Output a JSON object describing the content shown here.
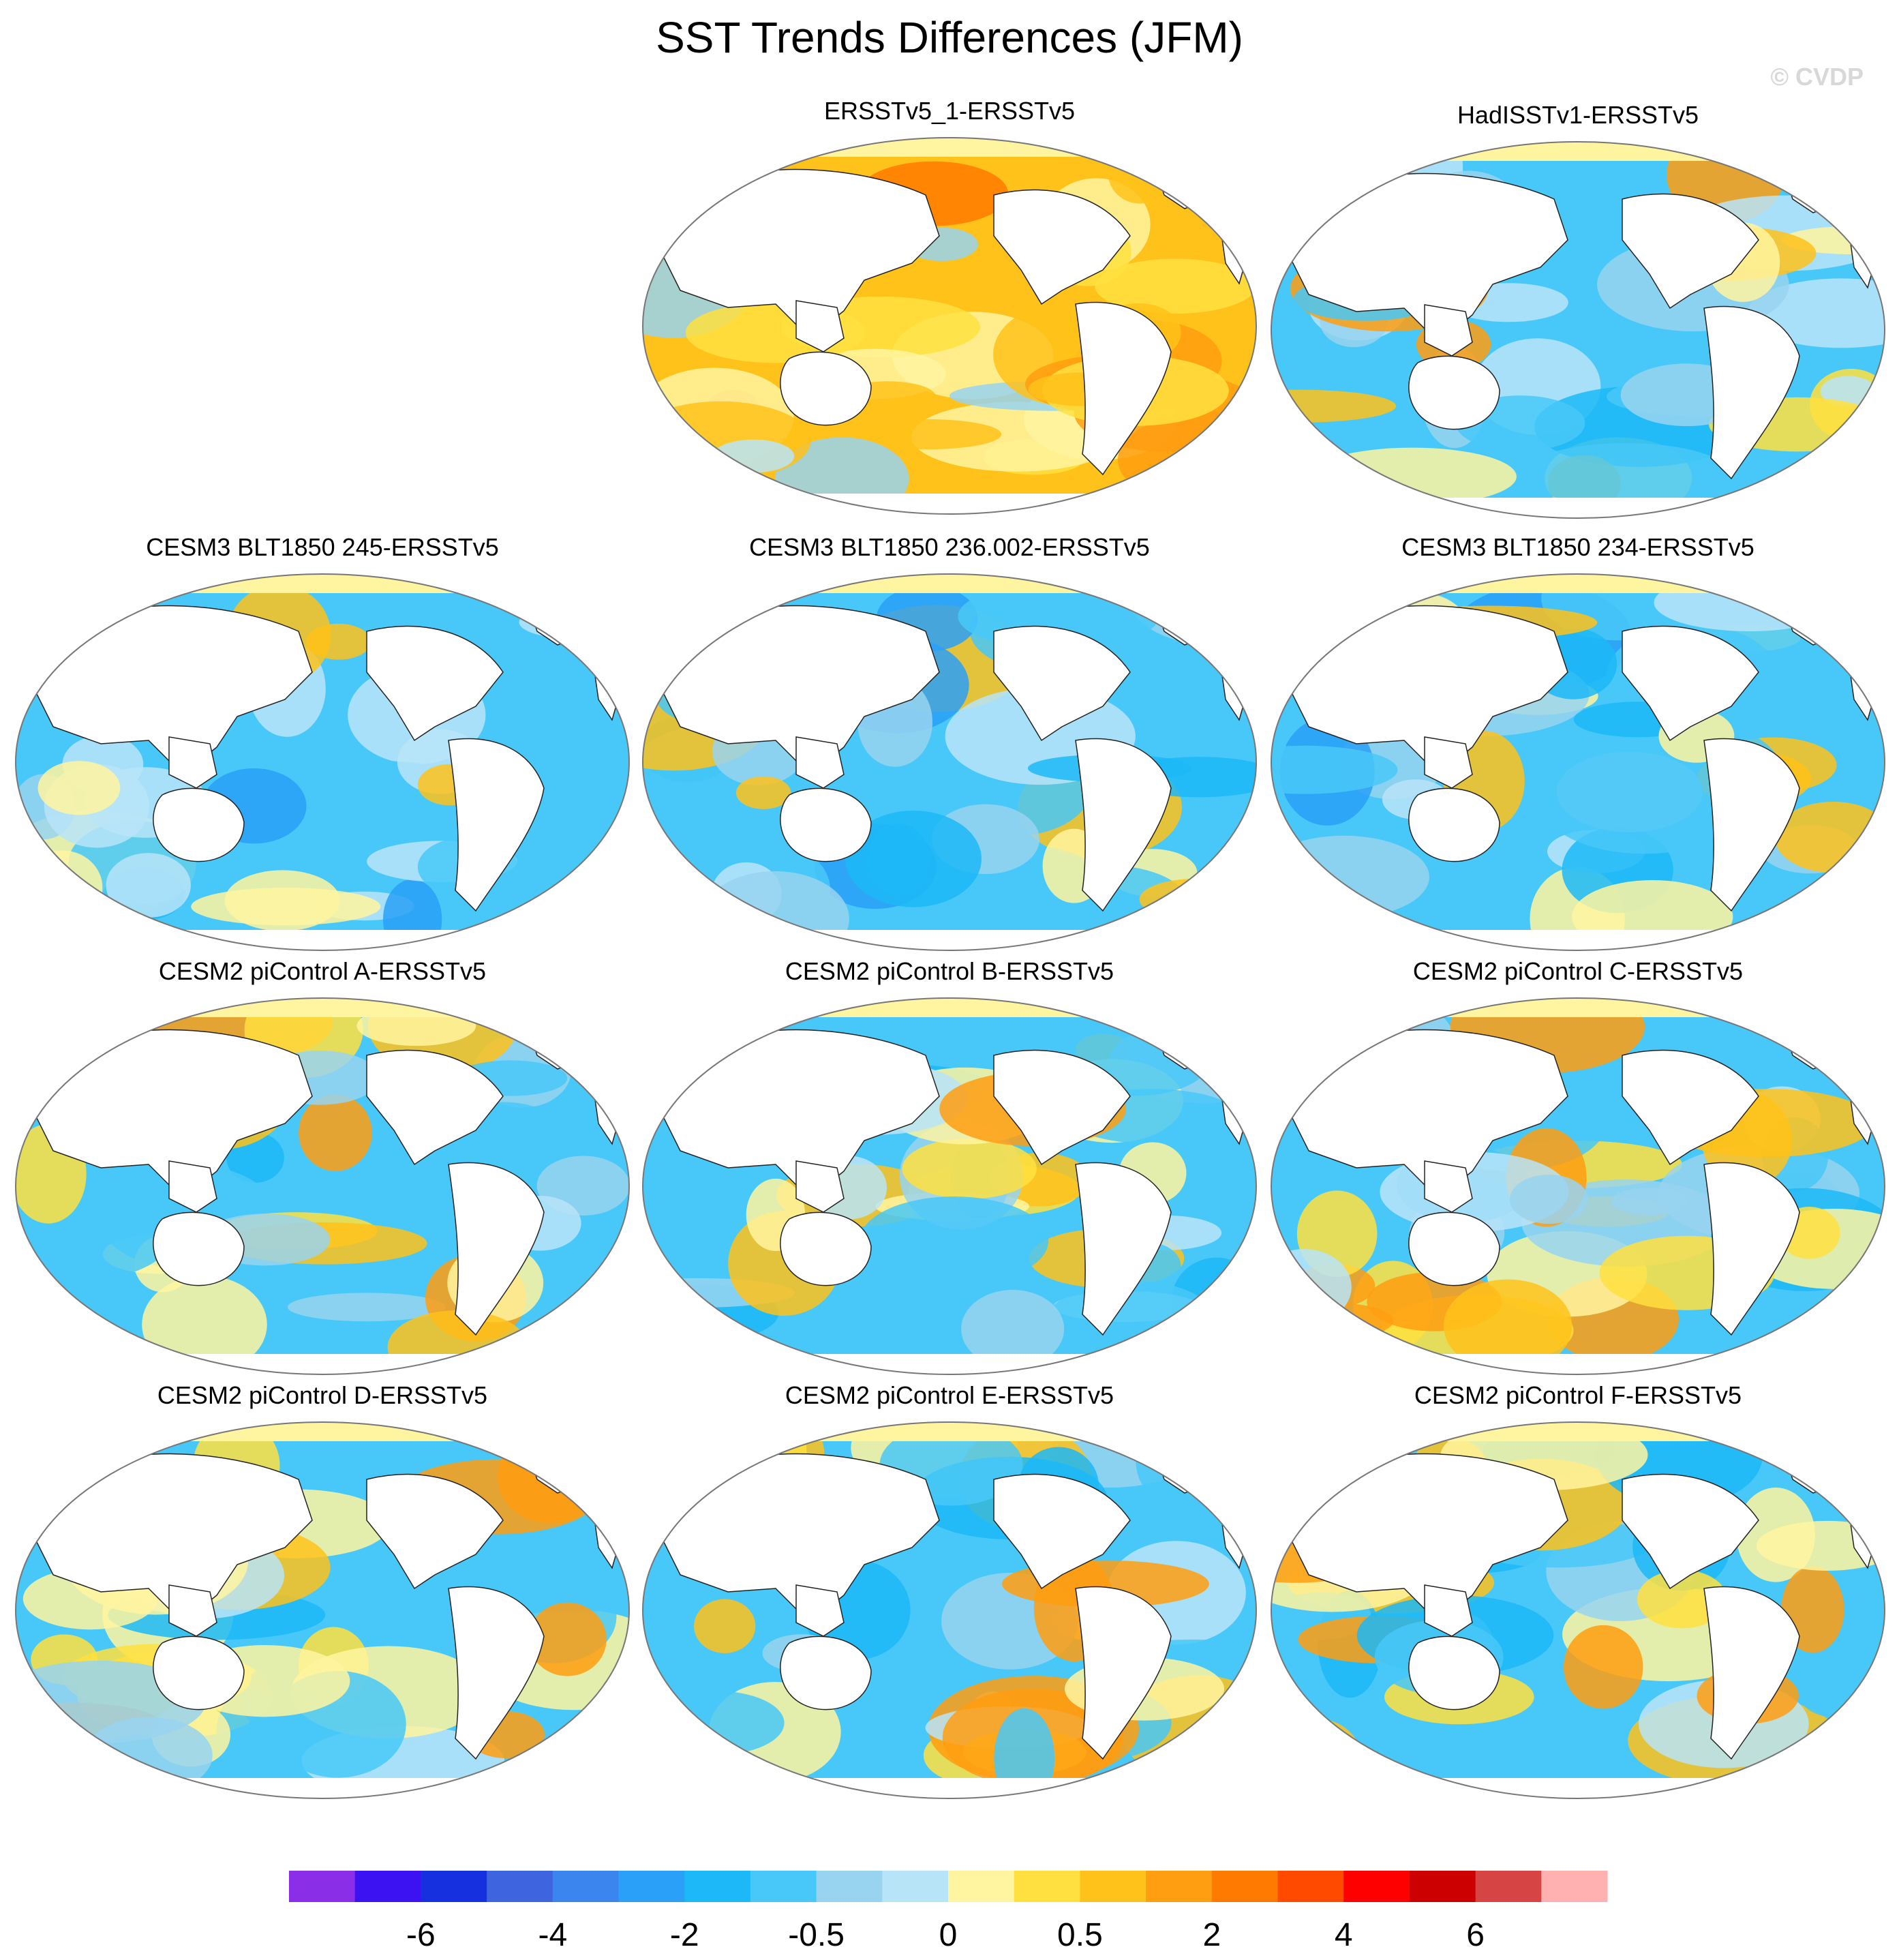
{
  "title": "SST Trends Differences (JFM)",
  "watermark": "© CVDP",
  "chart_data": [
    {
      "type": "heatmap",
      "title": "ERSSTv5_1-ERSSTv5",
      "dominant": "warm"
    },
    {
      "type": "heatmap",
      "title": "HadISSTv1-ERSSTv5",
      "dominant": "mixed"
    },
    {
      "type": "heatmap",
      "title": "CESM3 BLT1850 245-ERSSTv5",
      "dominant": "cool"
    },
    {
      "type": "heatmap",
      "title": "CESM3 BLT1850 236.002-ERSSTv5",
      "dominant": "cool"
    },
    {
      "type": "heatmap",
      "title": "CESM3 BLT1850 234-ERSSTv5",
      "dominant": "cool"
    },
    {
      "type": "heatmap",
      "title": "CESM2 piControl A-ERSSTv5",
      "dominant": "mixed"
    },
    {
      "type": "heatmap",
      "title": "CESM2 piControl B-ERSSTv5",
      "dominant": "mixed"
    },
    {
      "type": "heatmap",
      "title": "CESM2 piControl C-ERSSTv5",
      "dominant": "mixed"
    },
    {
      "type": "heatmap",
      "title": "CESM2 piControl D-ERSSTv5",
      "dominant": "mixed"
    },
    {
      "type": "heatmap",
      "title": "CESM2 piControl E-ERSSTv5",
      "dominant": "mixed"
    },
    {
      "type": "heatmap",
      "title": "CESM2 piControl F-ERSSTv5",
      "dominant": "mixed"
    }
  ],
  "colorbar": {
    "colors": [
      "#8a2ee8",
      "#3c12f2",
      "#1630e0",
      "#3f64e0",
      "#3a86ee",
      "#2aa0f8",
      "#1cb8f7",
      "#48c8f8",
      "#98d4f0",
      "#b8e4f8",
      "#fff5a0",
      "#ffe040",
      "#ffc21a",
      "#ff9e10",
      "#ff7a00",
      "#ff4a00",
      "#ff0000",
      "#cc0000",
      "#d64444",
      "#ffb0b0"
    ],
    "tick_labels": [
      "-6",
      "-4",
      "-2",
      "-0.5",
      "0",
      "0.5",
      "2",
      "4",
      "6"
    ]
  }
}
